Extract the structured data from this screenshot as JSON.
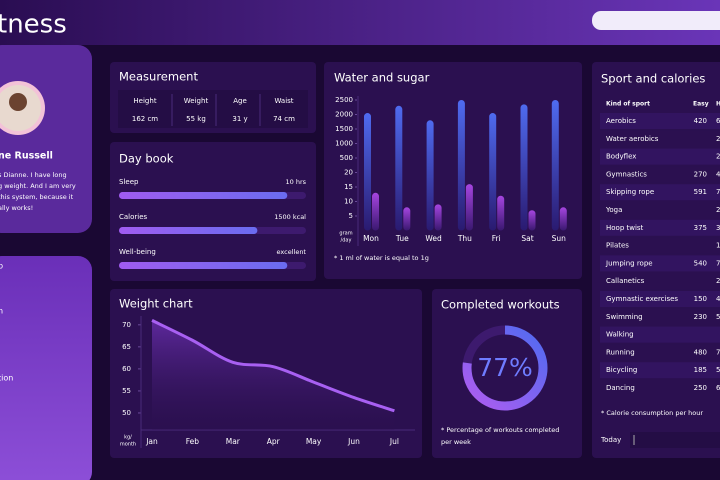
{
  "header": {
    "title": "tness"
  },
  "profile": {
    "name": "ne Russell",
    "bio": [
      "s Dianne. I have long",
      "g weight. And I am very",
      "this system, because it",
      "ally works!"
    ]
  },
  "menu": [
    "p",
    "n",
    "tion"
  ],
  "measurement": {
    "title": "Measurement",
    "headers": [
      "Height",
      "Weight",
      "Age",
      "Waist"
    ],
    "values": [
      "162 cm",
      "55 kg",
      "31 y",
      "74 cm"
    ]
  },
  "day_book": {
    "title": "Day book",
    "items": [
      {
        "label": "Sleep",
        "value": "10 hrs",
        "progress": 90
      },
      {
        "label": "Calories",
        "value": "1500 kcal",
        "progress": 74
      },
      {
        "label": "Well-being",
        "value": "excellent",
        "progress": 90
      }
    ]
  },
  "chart_data": [
    {
      "type": "bar",
      "title": "Water and sugar",
      "categories": [
        "Mon",
        "Tue",
        "Wed",
        "Thu",
        "Fri",
        "Sat",
        "Sun"
      ],
      "series": [
        {
          "color": "#4a63e6",
          "values": [
            2050,
            2300,
            1800,
            2500,
            2050,
            2350,
            2500
          ]
        },
        {
          "color": "#9b3fd9",
          "values": [
            13,
            8,
            9,
            16,
            12,
            7,
            8
          ]
        }
      ],
      "ylim": [
        0,
        2500
      ],
      "yticks": [
        5,
        10,
        15,
        20,
        500,
        1000,
        1500,
        2000,
        2500
      ],
      "scale": "segmented",
      "y_label": [
        "gram",
        "/day"
      ],
      "note": "* 1 ml of water is equal to 1g"
    },
    {
      "type": "area",
      "title": "Weight chart",
      "categories": [
        "Jan",
        "Feb",
        "Mar",
        "Apr",
        "May",
        "Jun",
        "Jul"
      ],
      "values": [
        71,
        66.5,
        61.5,
        60.5,
        57,
        53.5,
        50.5
      ],
      "color": "#a860f2",
      "ylim": [
        45,
        72
      ],
      "yticks": [
        50,
        55,
        60,
        65,
        70
      ],
      "y_label": [
        "kg/",
        "month"
      ]
    },
    {
      "type": "donut",
      "title": "Completed workouts",
      "values": [
        77
      ],
      "value_labels": [
        "77%"
      ],
      "color": "#7a5cf0",
      "note": [
        "* Percentage of workouts completed",
        "per week"
      ]
    }
  ],
  "sport": {
    "title": "Sport and calories",
    "columns": [
      "Kind of sport",
      "Easy",
      "H"
    ],
    "rows": [
      [
        "Aerobics",
        420,
        6
      ],
      [
        "Water aerobics",
        null,
        2
      ],
      [
        "Bodyflex",
        null,
        2
      ],
      [
        "Gymnastics",
        270,
        4
      ],
      [
        "Skipping rope",
        591,
        7
      ],
      [
        "Yoga",
        null,
        2
      ],
      [
        "Hoop twist",
        375,
        3
      ],
      [
        "Pilates",
        null,
        1
      ],
      [
        "Jumping rope",
        540,
        7
      ],
      [
        "Callanetics",
        null,
        2
      ],
      [
        "Gymnastic exercises",
        150,
        4
      ],
      [
        "Swimming",
        230,
        5
      ],
      [
        "Walking",
        null,
        null
      ],
      [
        "Running",
        480,
        7
      ],
      [
        "Bicycling",
        185,
        5
      ],
      [
        "Dancing",
        250,
        6
      ]
    ],
    "note": "* Calorie consumption per hour",
    "today": "Today"
  }
}
